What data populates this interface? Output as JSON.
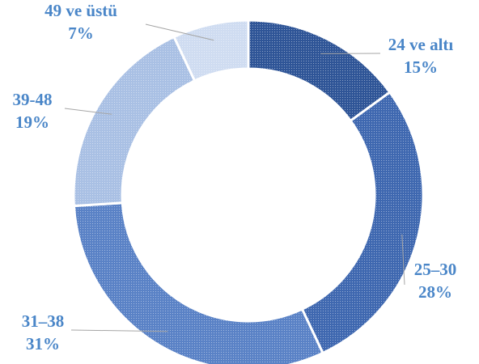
{
  "chart_data": {
    "type": "pie",
    "variant": "donut",
    "categories": [
      "24 ve altı",
      "25–30",
      "31–38",
      "39-48",
      "49 ve üstü"
    ],
    "values": [
      15,
      28,
      31,
      19,
      7
    ],
    "value_labels": [
      "15%",
      "28%",
      "31%",
      "19%",
      "7%"
    ],
    "colors": [
      "#2f5597",
      "#3f68b0",
      "#5a82c6",
      "#a9c0e4",
      "#cfdcf1"
    ],
    "label_color": "#4a86c8",
    "legend": "none",
    "pattern": "dotted-fill"
  }
}
